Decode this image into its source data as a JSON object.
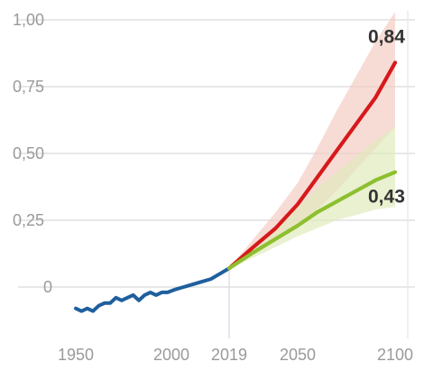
{
  "chart_data": {
    "type": "line",
    "title": "",
    "xlabel": "",
    "ylabel": "",
    "xlim": [
      1950,
      2100
    ],
    "ylim": [
      -0.15,
      1.0
    ],
    "x_break_year": 2019,
    "yticks": [
      {
        "value": 1.0,
        "label": "1,00"
      },
      {
        "value": 0.75,
        "label": "0,75"
      },
      {
        "value": 0.5,
        "label": "0,50"
      },
      {
        "value": 0.25,
        "label": "0,25"
      },
      {
        "value": 0.0,
        "label": "0"
      }
    ],
    "xticks": [
      {
        "value": 1950,
        "label": "1950"
      },
      {
        "value": 2000,
        "label": "2000"
      },
      {
        "value": 2019,
        "label": "2019"
      },
      {
        "value": 2050,
        "label": "2050"
      },
      {
        "value": 2100,
        "label": "2100"
      }
    ],
    "grid": true,
    "series": [
      {
        "key": "observed",
        "color": "#1f5f9e",
        "x": [
          1950,
          1953,
          1956,
          1959,
          1962,
          1965,
          1968,
          1971,
          1974,
          1977,
          1980,
          1983,
          1986,
          1989,
          1992,
          1995,
          1998,
          2001,
          2004,
          2007,
          2010,
          2013,
          2016,
          2019
        ],
        "y": [
          -0.08,
          -0.09,
          -0.08,
          -0.09,
          -0.07,
          -0.06,
          -0.06,
          -0.04,
          -0.05,
          -0.04,
          -0.03,
          -0.05,
          -0.03,
          -0.02,
          -0.03,
          -0.02,
          -0.02,
          -0.01,
          0.0,
          0.01,
          0.02,
          0.03,
          0.05,
          0.07
        ]
      },
      {
        "key": "high",
        "color": "#d7191c",
        "end_label": "0,84",
        "x": [
          2019,
          2030,
          2040,
          2050,
          2060,
          2070,
          2080,
          2090,
          2100
        ],
        "y": [
          0.07,
          0.15,
          0.22,
          0.31,
          0.41,
          0.51,
          0.61,
          0.71,
          0.84
        ],
        "band_low": [
          0.07,
          0.12,
          0.17,
          0.22,
          0.29,
          0.36,
          0.44,
          0.52,
          0.6
        ],
        "band_high": [
          0.07,
          0.18,
          0.28,
          0.39,
          0.52,
          0.66,
          0.79,
          0.92,
          1.03
        ],
        "band_color": "#f3c9c0"
      },
      {
        "key": "low",
        "color": "#8dbf2e",
        "end_label": "0,43",
        "x": [
          2019,
          2030,
          2040,
          2050,
          2060,
          2070,
          2080,
          2090,
          2100
        ],
        "y": [
          0.07,
          0.13,
          0.18,
          0.23,
          0.28,
          0.32,
          0.36,
          0.4,
          0.43
        ],
        "band_low": [
          0.07,
          0.11,
          0.15,
          0.19,
          0.22,
          0.25,
          0.27,
          0.29,
          0.3
        ],
        "band_high": [
          0.07,
          0.16,
          0.23,
          0.3,
          0.37,
          0.43,
          0.49,
          0.55,
          0.6
        ],
        "band_color": "#dfeab8"
      }
    ]
  }
}
